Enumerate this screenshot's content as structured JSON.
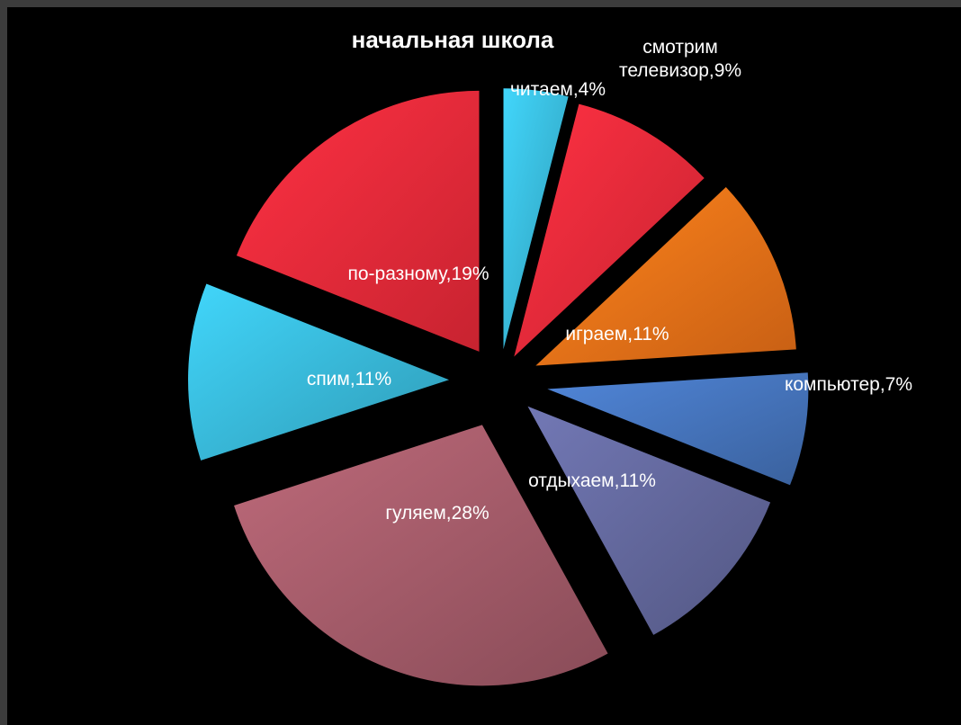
{
  "chart_data": {
    "type": "pie",
    "title": "начальная школа",
    "slices": [
      {
        "label": "читаем,4%",
        "value": 4,
        "color": "#3cc6e8"
      },
      {
        "label": "смотрим\nтелевизор,9%",
        "value": 9,
        "color": "#ff2d3e"
      },
      {
        "label": "играем,11%",
        "value": 11,
        "color": "#ff7a1a"
      },
      {
        "label": "компьютер,7%",
        "value": 7,
        "color": "#4a7cc9"
      },
      {
        "label": "отдыхаем,11%",
        "value": 11,
        "color": "#6a6fa8"
      },
      {
        "label": "гуляем,28%",
        "value": 28,
        "color": "#b06271"
      },
      {
        "label": "спим,11%",
        "value": 11,
        "color": "#3cc6e8"
      },
      {
        "label": "по-разному,19%",
        "value": 19,
        "color": "#ff2d3e"
      }
    ],
    "legend": "none"
  }
}
